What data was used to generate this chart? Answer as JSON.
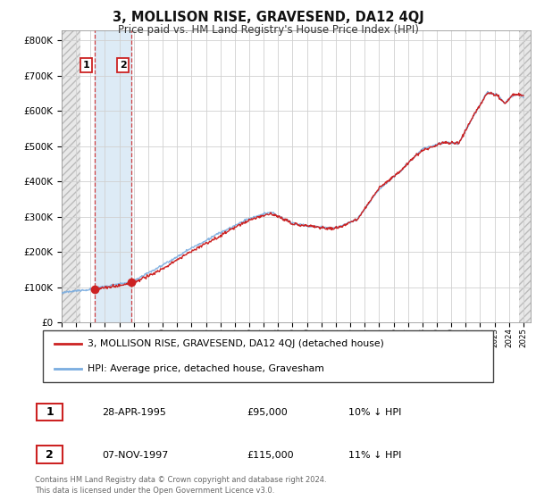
{
  "title": "3, MOLLISON RISE, GRAVESEND, DA12 4QJ",
  "subtitle": "Price paid vs. HM Land Registry's House Price Index (HPI)",
  "purchases": [
    {
      "date": 1995.32,
      "price": 95000,
      "label": "1"
    },
    {
      "date": 1997.85,
      "price": 115000,
      "label": "2"
    }
  ],
  "legend_entries": [
    "3, MOLLISON RISE, GRAVESEND, DA12 4QJ (detached house)",
    "HPI: Average price, detached house, Gravesham"
  ],
  "table_rows": [
    {
      "num": "1",
      "date": "28-APR-1995",
      "price": "£95,000",
      "hpi": "10% ↓ HPI"
    },
    {
      "num": "2",
      "date": "07-NOV-1997",
      "price": "£115,000",
      "hpi": "11% ↓ HPI"
    }
  ],
  "footer": "Contains HM Land Registry data © Crown copyright and database right 2024.\nThis data is licensed under the Open Government Licence v3.0.",
  "hpi_line_color": "#7aade0",
  "price_line_color": "#cc2222",
  "purchase_dot_color": "#cc2222",
  "vline_color": "#cc2222",
  "ylim": [
    0,
    830000
  ],
  "xlim_start": 1993.0,
  "xlim_end": 2025.5,
  "p1_date": 1995.32,
  "p1_price": 95000,
  "p2_date": 1997.85,
  "p2_price": 115000,
  "hatch_end": 1994.3,
  "shade_end": 1997.85
}
